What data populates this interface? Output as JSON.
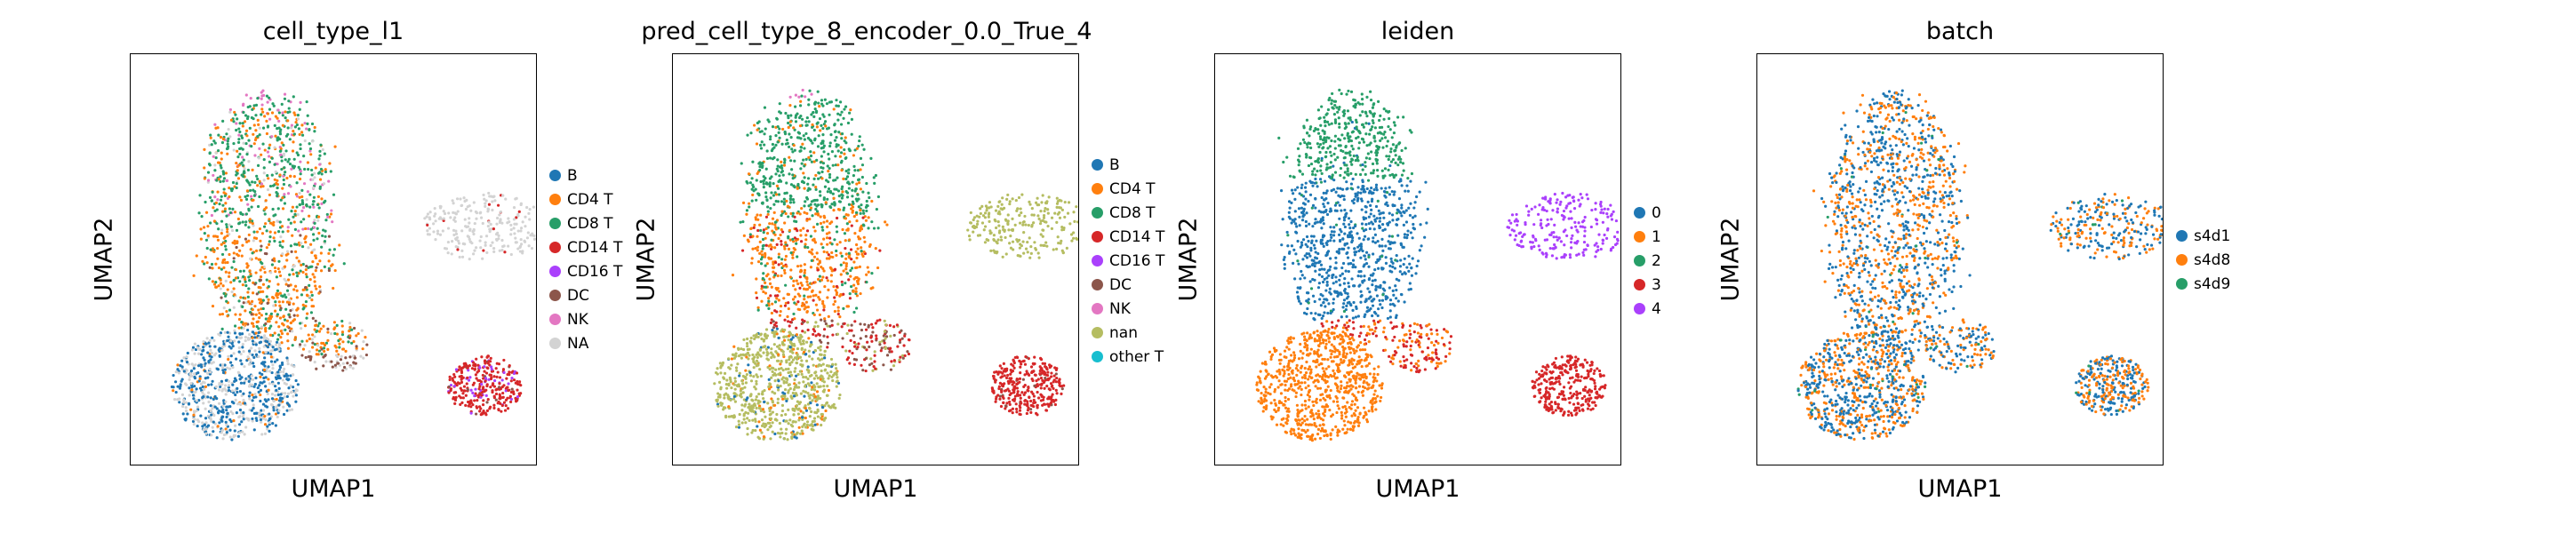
{
  "chart_data": [
    {
      "type": "scatter",
      "title": "cell_type_l1",
      "xlabel": "UMAP1",
      "ylabel": "UMAP2",
      "grid": false,
      "legend_position": "right",
      "legend": [
        {
          "label": "B",
          "color": "#1f77b4"
        },
        {
          "label": "CD4 T",
          "color": "#ff7f0e"
        },
        {
          "label": "CD8 T",
          "color": "#279e68"
        },
        {
          "label": "CD14 T",
          "color": "#d62728"
        },
        {
          "label": "CD16 T",
          "color": "#aa40fc"
        },
        {
          "label": "DC",
          "color": "#8c564b"
        },
        {
          "label": "NK",
          "color": "#e377c2"
        },
        {
          "label": "NA",
          "color": "#d3d3d3"
        }
      ]
    },
    {
      "type": "scatter",
      "title": "pred_cell_type_8_encoder_0.0_True_4",
      "xlabel": "UMAP1",
      "ylabel": "UMAP2",
      "grid": false,
      "legend_position": "right",
      "legend": [
        {
          "label": "B",
          "color": "#1f77b4"
        },
        {
          "label": "CD4 T",
          "color": "#ff7f0e"
        },
        {
          "label": "CD8 T",
          "color": "#279e68"
        },
        {
          "label": "CD14 T",
          "color": "#d62728"
        },
        {
          "label": "CD16 T",
          "color": "#aa40fc"
        },
        {
          "label": "DC",
          "color": "#8c564b"
        },
        {
          "label": "NK",
          "color": "#e377c2"
        },
        {
          "label": "nan",
          "color": "#b5bd61"
        },
        {
          "label": "other T",
          "color": "#17becf"
        }
      ]
    },
    {
      "type": "scatter",
      "title": "leiden",
      "xlabel": "UMAP1",
      "ylabel": "UMAP2",
      "grid": false,
      "legend_position": "right",
      "legend": [
        {
          "label": "0",
          "color": "#1f77b4"
        },
        {
          "label": "1",
          "color": "#ff7f0e"
        },
        {
          "label": "2",
          "color": "#279e68"
        },
        {
          "label": "3",
          "color": "#d62728"
        },
        {
          "label": "4",
          "color": "#aa40fc"
        }
      ]
    },
    {
      "type": "scatter",
      "title": "batch",
      "xlabel": "UMAP1",
      "ylabel": "UMAP2",
      "grid": false,
      "legend_position": "right",
      "legend": [
        {
          "label": "s4d1",
          "color": "#1f77b4"
        },
        {
          "label": "s4d8",
          "color": "#ff7f0e"
        },
        {
          "label": "s4d9",
          "color": "#279e68"
        }
      ]
    }
  ]
}
